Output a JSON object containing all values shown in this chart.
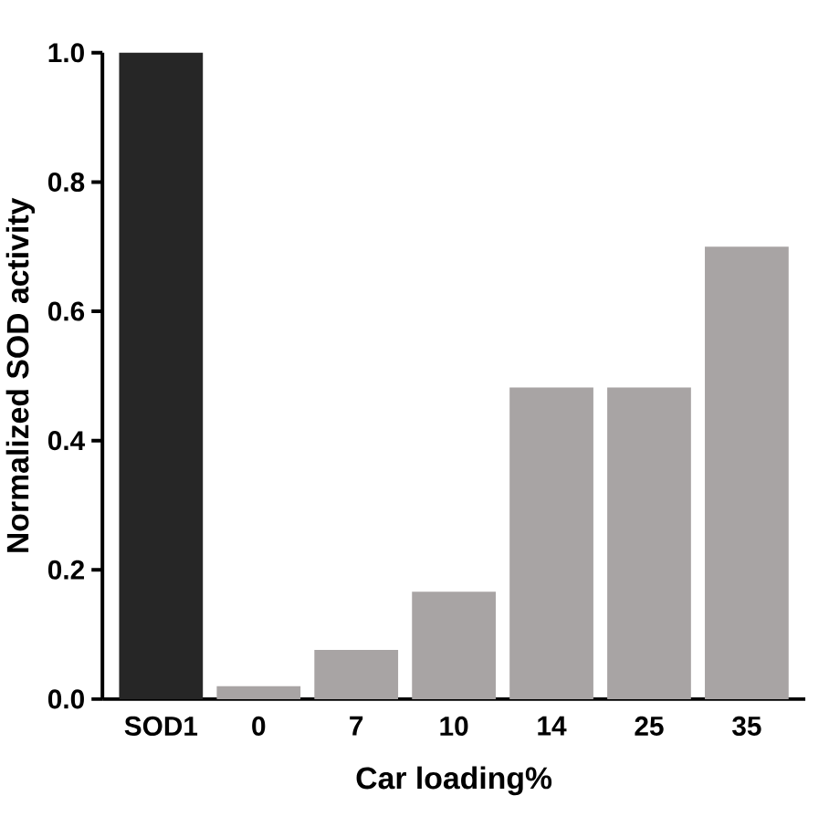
{
  "chart_data": {
    "type": "bar",
    "xlabel": "Car loading%",
    "ylabel": "Normalized SOD  activity",
    "categories": [
      "SOD1",
      "0",
      "7",
      "10",
      "14",
      "25",
      "35"
    ],
    "values": [
      1.0,
      0.02,
      0.076,
      0.166,
      0.482,
      0.482,
      0.7
    ],
    "colors": [
      "#262626",
      "#a8a4a4",
      "#a8a4a4",
      "#a8a4a4",
      "#a8a4a4",
      "#a8a4a4",
      "#a8a4a4"
    ],
    "ylim": [
      0,
      1.0
    ],
    "yticks": [
      {
        "value": 0,
        "label": "0.0"
      },
      {
        "value": 0.2,
        "label": "0.2"
      },
      {
        "value": 0.4,
        "label": "0.4"
      },
      {
        "value": 0.6,
        "label": "0.6"
      },
      {
        "value": 0.8,
        "label": "0.8"
      },
      {
        "value": 1.0,
        "label": "1.0"
      }
    ]
  }
}
